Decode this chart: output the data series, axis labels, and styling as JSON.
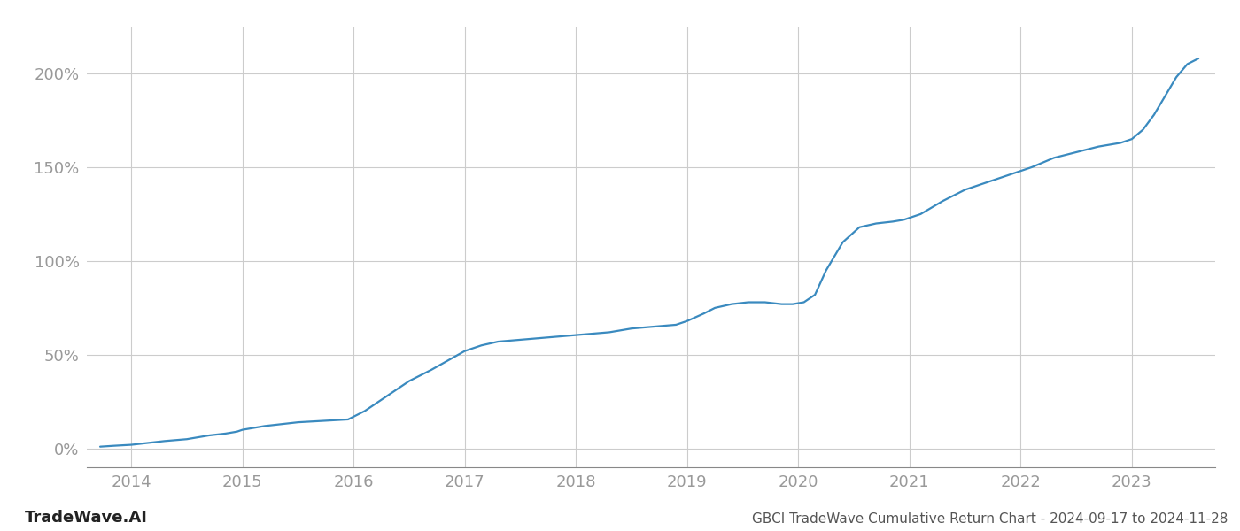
{
  "title": "GBCI TradeWave Cumulative Return Chart - 2024-09-17 to 2024-11-28",
  "watermark": "TradeWave.AI",
  "line_color": "#3a8abf",
  "background_color": "#ffffff",
  "grid_color": "#cccccc",
  "x_tick_color": "#999999",
  "y_tick_color": "#999999",
  "title_color": "#555555",
  "watermark_color": "#222222",
  "line_width": 1.6,
  "xlim": [
    2013.6,
    2023.75
  ],
  "ylim": [
    -10,
    225
  ],
  "x_ticks": [
    2014,
    2015,
    2016,
    2017,
    2018,
    2019,
    2020,
    2021,
    2022,
    2023
  ],
  "y_ticks": [
    0,
    50,
    100,
    150,
    200
  ],
  "y_tick_labels": [
    "0%",
    "50%",
    "100%",
    "150%",
    "200%"
  ],
  "data_x": [
    2013.72,
    2013.85,
    2014.0,
    2014.15,
    2014.3,
    2014.5,
    2014.7,
    2014.85,
    2014.95,
    2015.0,
    2015.1,
    2015.2,
    2015.35,
    2015.5,
    2015.65,
    2015.8,
    2015.95,
    2016.1,
    2016.3,
    2016.5,
    2016.7,
    2016.85,
    2017.0,
    2017.15,
    2017.3,
    2017.5,
    2017.7,
    2017.9,
    2018.1,
    2018.3,
    2018.5,
    2018.7,
    2018.9,
    2019.0,
    2019.15,
    2019.25,
    2019.4,
    2019.55,
    2019.7,
    2019.85,
    2019.95,
    2020.05,
    2020.15,
    2020.25,
    2020.4,
    2020.55,
    2020.7,
    2020.85,
    2020.95,
    2021.1,
    2021.3,
    2021.5,
    2021.7,
    2021.9,
    2022.1,
    2022.3,
    2022.5,
    2022.7,
    2022.9,
    2023.0,
    2023.1,
    2023.2,
    2023.3,
    2023.4,
    2023.5,
    2023.6
  ],
  "data_y": [
    1,
    1.5,
    2,
    3,
    4,
    5,
    7,
    8,
    9,
    10,
    11,
    12,
    13,
    14,
    14.5,
    15,
    15.5,
    20,
    28,
    36,
    42,
    47,
    52,
    55,
    57,
    58,
    59,
    60,
    61,
    62,
    64,
    65,
    66,
    68,
    72,
    75,
    77,
    78,
    78,
    77,
    77,
    78,
    82,
    95,
    110,
    118,
    120,
    121,
    122,
    125,
    132,
    138,
    142,
    146,
    150,
    155,
    158,
    161,
    163,
    165,
    170,
    178,
    188,
    198,
    205,
    208
  ]
}
